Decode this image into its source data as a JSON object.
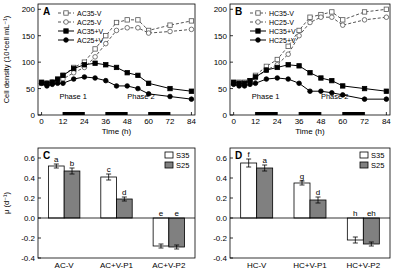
{
  "chart_data": [
    {
      "type": "line",
      "title": "A",
      "x_label": "Time (h)",
      "y_label": "Cell density (10⁴cell mL⁻¹)",
      "x": [
        0,
        3,
        6,
        9,
        12,
        18,
        24,
        30,
        36,
        42,
        48,
        54,
        60,
        72,
        84
      ],
      "xlim": [
        -2,
        86
      ],
      "xticks": [
        0,
        12,
        24,
        36,
        48,
        60,
        72,
        84
      ],
      "ylim": [
        0,
        210
      ],
      "yticks": [
        0,
        50,
        100,
        150,
        200
      ],
      "legend": "upper left",
      "annotations": [
        {
          "text": "Phase 1",
          "x": 10,
          "y": 30
        },
        {
          "text": "Phase 2",
          "x": 48,
          "y": 30
        }
      ],
      "dark_periods": [
        [
          12,
          24
        ],
        [
          36,
          48
        ],
        [
          60,
          72
        ]
      ],
      "series": [
        {
          "name": "AC35-V",
          "color": "#555555",
          "marker": "square-open",
          "line_style": "dashed",
          "values": [
            60,
            60,
            62,
            65,
            75,
            90,
            100,
            125,
            150,
            175,
            180,
            180,
            160,
            170,
            178
          ]
        },
        {
          "name": "AC25-V",
          "color": "#555555",
          "marker": "circle-open",
          "line_style": "dashed",
          "values": [
            60,
            60,
            62,
            62,
            68,
            80,
            90,
            110,
            135,
            160,
            165,
            165,
            155,
            158,
            162
          ]
        },
        {
          "name": "AC35+V",
          "color": "#000000",
          "marker": "square",
          "line_style": "solid",
          "values": [
            62,
            60,
            62,
            68,
            75,
            88,
            95,
            98,
            95,
            90,
            80,
            75,
            60,
            50,
            45
          ]
        },
        {
          "name": "AC25+V",
          "color": "#000000",
          "marker": "circle",
          "line_style": "solid",
          "values": [
            60,
            55,
            58,
            60,
            60,
            68,
            72,
            70,
            65,
            55,
            55,
            50,
            40,
            35,
            30
          ]
        }
      ]
    },
    {
      "type": "line",
      "title": "B",
      "x_label": "Time (h)",
      "x": [
        0,
        3,
        6,
        9,
        12,
        18,
        24,
        30,
        36,
        42,
        48,
        54,
        60,
        72,
        84
      ],
      "xlim": [
        -2,
        86
      ],
      "xticks": [
        0,
        12,
        24,
        36,
        48,
        60,
        72,
        84
      ],
      "ylim": [
        0,
        210
      ],
      "yticks": [
        0,
        50,
        100,
        150,
        200
      ],
      "legend": "upper left",
      "annotations": [
        {
          "text": "Phase 1",
          "x": 10,
          "y": 30
        },
        {
          "text": "Phase 2",
          "x": 48,
          "y": 30
        }
      ],
      "dark_periods": [
        [
          12,
          24
        ],
        [
          36,
          48
        ],
        [
          60,
          72
        ]
      ],
      "series": [
        {
          "name": "HC35-V",
          "color": "#555555",
          "marker": "square-open",
          "line_style": "dashed",
          "values": [
            60,
            62,
            62,
            65,
            75,
            92,
            105,
            130,
            160,
            185,
            190,
            195,
            180,
            195,
            200
          ]
        },
        {
          "name": "HC25-V",
          "color": "#555555",
          "marker": "circle-open",
          "line_style": "dashed",
          "values": [
            60,
            60,
            60,
            62,
            70,
            85,
            95,
            115,
            150,
            175,
            185,
            185,
            170,
            180,
            185
          ]
        },
        {
          "name": "HC35+V",
          "color": "#000000",
          "marker": "square",
          "line_style": "solid",
          "values": [
            62,
            60,
            60,
            65,
            72,
            85,
            90,
            95,
            93,
            80,
            70,
            65,
            55,
            50,
            45
          ]
        },
        {
          "name": "HC25+V",
          "color": "#000000",
          "marker": "circle",
          "line_style": "solid",
          "values": [
            58,
            55,
            55,
            58,
            60,
            68,
            70,
            68,
            60,
            45,
            45,
            42,
            38,
            30,
            30
          ]
        }
      ]
    },
    {
      "type": "bar",
      "title": "C",
      "y_label": "μ (d⁻¹)",
      "categories": [
        "AC-V",
        "AC+V-P1",
        "AC+V-P2"
      ],
      "ylim": [
        -0.4,
        0.7
      ],
      "yticks": [
        -0.4,
        -0.2,
        {
          "value": 0,
          "label": "0.0"
        },
        0.2,
        0.4,
        0.6
      ],
      "legend": "upper right",
      "series": [
        {
          "name": "S35",
          "color": "#ffffff",
          "values": [
            0.52,
            0.41,
            -0.28
          ],
          "errors": [
            0.02,
            0.03,
            0.02
          ],
          "letters": [
            "a",
            "c",
            "e"
          ]
        },
        {
          "name": "S25",
          "color": "#808080",
          "values": [
            0.47,
            0.19,
            -0.29
          ],
          "errors": [
            0.03,
            0.02,
            0.02
          ],
          "letters": [
            "b",
            "d",
            "e"
          ]
        }
      ]
    },
    {
      "type": "bar",
      "title": "D",
      "categories": [
        "HC-V",
        "HC+V-P1",
        "HC+V-P2"
      ],
      "ylim": [
        -0.4,
        0.7
      ],
      "yticks": [
        -0.4,
        -0.2,
        {
          "value": 0,
          "label": "0.0"
        },
        0.2,
        0.4,
        0.6
      ],
      "legend": "upper right",
      "series": [
        {
          "name": "S35",
          "color": "#ffffff",
          "values": [
            0.55,
            0.35,
            -0.22
          ],
          "errors": [
            0.04,
            0.02,
            0.03
          ],
          "letters": [
            "f",
            "g",
            "h"
          ]
        },
        {
          "name": "S25",
          "color": "#808080",
          "values": [
            0.5,
            0.18,
            -0.26
          ],
          "errors": [
            0.03,
            0.03,
            0.02
          ],
          "letters": [
            "a",
            "d",
            "eh"
          ]
        }
      ]
    }
  ]
}
